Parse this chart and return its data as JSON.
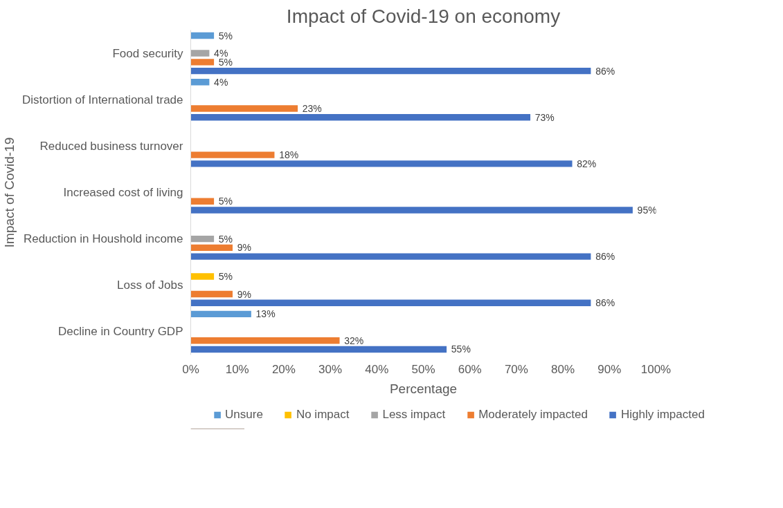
{
  "chart_data": {
    "type": "bar",
    "orientation": "horizontal",
    "title": "Impact of Covid-19 on economy",
    "xlabel": "Percentage",
    "ylabel": "Impact of Covid-19",
    "categories": [
      "Food security",
      "Distortion of International trade",
      "Reduced business turnover",
      "Increased cost of living",
      "Reduction in Houshold income",
      "Loss of Jobs",
      "Decline in Country GDP"
    ],
    "series": [
      {
        "name": "Unsure",
        "color": "#5b9bd5",
        "values": [
          5,
          4,
          null,
          null,
          null,
          null,
          13
        ],
        "value_labels": [
          "5%",
          "4%",
          null,
          null,
          null,
          null,
          "13%"
        ]
      },
      {
        "name": "No impact",
        "color": "#ffc000",
        "values": [
          null,
          null,
          null,
          null,
          null,
          5,
          null
        ],
        "value_labels": [
          null,
          null,
          null,
          null,
          null,
          "5%",
          null
        ]
      },
      {
        "name": "Less impact",
        "color": "#a5a5a5",
        "values": [
          4,
          null,
          null,
          null,
          5,
          null,
          null
        ],
        "value_labels": [
          "4%",
          null,
          null,
          null,
          "5%",
          null,
          null
        ]
      },
      {
        "name": "Moderately impacted",
        "color": "#ed7d31",
        "values": [
          5,
          23,
          18,
          5,
          9,
          9,
          32
        ],
        "value_labels": [
          "5%",
          "23%",
          "18%",
          "5%",
          "9%",
          "9%",
          "32%"
        ]
      },
      {
        "name": "Highly impacted",
        "color": "#4472c4",
        "values": [
          86,
          73,
          82,
          95,
          86,
          86,
          55
        ],
        "value_labels": [
          "86%",
          "73%",
          "82%",
          "95%",
          "86%",
          "86%",
          "55%"
        ]
      }
    ],
    "xlim": [
      0,
      100
    ],
    "xticks": [
      {
        "value": 0,
        "label": "0%"
      },
      {
        "value": 10,
        "label": "10%"
      },
      {
        "value": 20,
        "label": "20%"
      },
      {
        "value": 30,
        "label": "30%"
      },
      {
        "value": 40,
        "label": "40%"
      },
      {
        "value": 50,
        "label": "50%"
      },
      {
        "value": 60,
        "label": "60%"
      },
      {
        "value": 70,
        "label": "70%"
      },
      {
        "value": 80,
        "label": "80%"
      },
      {
        "value": 90,
        "label": "90%"
      },
      {
        "value": 100,
        "label": "100%"
      }
    ],
    "grid": false,
    "legend": "bottom"
  }
}
